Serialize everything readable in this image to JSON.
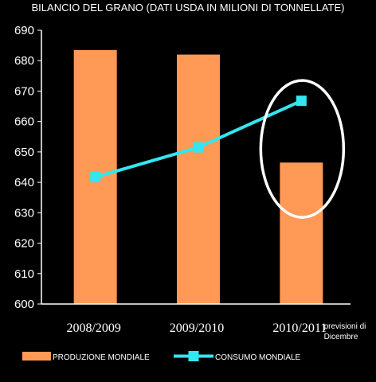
{
  "chart_data": {
    "type": "bar",
    "title": "BILANCIO DEL GRANO (DATI USDA IN MILIONI DI TONNELLATE)",
    "categories": [
      "2008/2009",
      "2009/2010",
      "2010/2011"
    ],
    "series": [
      {
        "name": "PRODUZIONE MONDIALE",
        "type": "bar",
        "values": [
          683.5,
          682,
          646.5
        ],
        "color": "#FF9955"
      },
      {
        "name": "CONSUMO MONDIALE",
        "type": "line",
        "values": [
          641.7,
          651.5,
          666.8
        ],
        "color": "#33E6F0"
      }
    ],
    "ylim": [
      600,
      690
    ],
    "yticks": [
      "600",
      "610",
      "620",
      "630",
      "640",
      "650",
      "660",
      "670",
      "680",
      "690"
    ],
    "xlabel": "",
    "ylabel": "",
    "grid": false,
    "annotation": "previsioni di Dicembre",
    "annotation_lines": [
      "previsioni di",
      "Dicembre"
    ],
    "highlight": "white ellipse around 2010/2011",
    "legend_position": "bottom",
    "background": "#000000",
    "axis_color": "#FFFFFF"
  }
}
